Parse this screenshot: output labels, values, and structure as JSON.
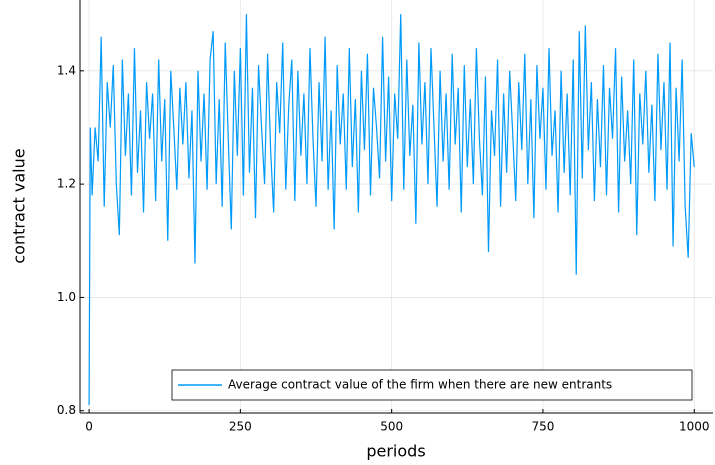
{
  "chart_data": {
    "type": "line",
    "xlabel": "periods",
    "ylabel": "contract value",
    "x": [
      0,
      2,
      5,
      10,
      15,
      20,
      25,
      30,
      35,
      40,
      45,
      50,
      55,
      60,
      65,
      70,
      75,
      80,
      85,
      90,
      95,
      100,
      105,
      110,
      115,
      120,
      125,
      130,
      135,
      140,
      145,
      150,
      155,
      160,
      165,
      170,
      175,
      180,
      185,
      190,
      195,
      200,
      205,
      210,
      215,
      220,
      225,
      230,
      235,
      240,
      245,
      250,
      255,
      260,
      265,
      270,
      275,
      280,
      285,
      290,
      295,
      300,
      305,
      310,
      315,
      320,
      325,
      330,
      335,
      340,
      345,
      350,
      355,
      360,
      365,
      370,
      375,
      380,
      385,
      390,
      395,
      400,
      405,
      410,
      415,
      420,
      425,
      430,
      435,
      440,
      445,
      450,
      455,
      460,
      465,
      470,
      475,
      480,
      485,
      490,
      495,
      500,
      505,
      510,
      515,
      520,
      525,
      530,
      535,
      540,
      545,
      550,
      555,
      560,
      565,
      570,
      575,
      580,
      585,
      590,
      595,
      600,
      605,
      610,
      615,
      620,
      625,
      630,
      635,
      640,
      645,
      650,
      655,
      660,
      665,
      670,
      675,
      680,
      685,
      690,
      695,
      700,
      705,
      710,
      715,
      720,
      725,
      730,
      735,
      740,
      745,
      750,
      755,
      760,
      765,
      770,
      775,
      780,
      785,
      790,
      795,
      800,
      805,
      810,
      815,
      820,
      825,
      830,
      835,
      840,
      845,
      850,
      855,
      860,
      865,
      870,
      875,
      880,
      885,
      890,
      895,
      900,
      905,
      910,
      915,
      920,
      925,
      930,
      935,
      940,
      945,
      950,
      955,
      960,
      965,
      970,
      975,
      980,
      985,
      990,
      995,
      1000
    ],
    "series": [
      {
        "name": "Average contract value of the firm when there are new entrants",
        "color": "#009af9",
        "values": [
          0.81,
          1.3,
          1.18,
          1.3,
          1.24,
          1.46,
          1.16,
          1.38,
          1.3,
          1.41,
          1.2,
          1.11,
          1.42,
          1.25,
          1.36,
          1.18,
          1.44,
          1.22,
          1.33,
          1.15,
          1.38,
          1.28,
          1.36,
          1.17,
          1.42,
          1.24,
          1.35,
          1.1,
          1.4,
          1.3,
          1.19,
          1.37,
          1.27,
          1.38,
          1.21,
          1.33,
          1.06,
          1.4,
          1.24,
          1.36,
          1.19,
          1.42,
          1.47,
          1.2,
          1.35,
          1.16,
          1.45,
          1.28,
          1.12,
          1.4,
          1.25,
          1.44,
          1.18,
          1.5,
          1.22,
          1.37,
          1.14,
          1.41,
          1.3,
          1.2,
          1.43,
          1.26,
          1.15,
          1.38,
          1.29,
          1.45,
          1.19,
          1.34,
          1.42,
          1.17,
          1.4,
          1.25,
          1.36,
          1.2,
          1.44,
          1.28,
          1.16,
          1.38,
          1.24,
          1.46,
          1.19,
          1.33,
          1.12,
          1.41,
          1.27,
          1.36,
          1.19,
          1.44,
          1.23,
          1.35,
          1.15,
          1.4,
          1.26,
          1.43,
          1.18,
          1.37,
          1.3,
          1.21,
          1.46,
          1.24,
          1.39,
          1.17,
          1.36,
          1.28,
          1.5,
          1.19,
          1.42,
          1.25,
          1.34,
          1.13,
          1.45,
          1.27,
          1.38,
          1.2,
          1.44,
          1.3,
          1.16,
          1.4,
          1.24,
          1.36,
          1.19,
          1.43,
          1.27,
          1.37,
          1.15,
          1.41,
          1.23,
          1.35,
          1.2,
          1.44,
          1.28,
          1.18,
          1.39,
          1.08,
          1.33,
          1.25,
          1.42,
          1.16,
          1.36,
          1.22,
          1.4,
          1.29,
          1.17,
          1.38,
          1.26,
          1.43,
          1.2,
          1.35,
          1.14,
          1.41,
          1.28,
          1.37,
          1.19,
          1.44,
          1.25,
          1.33,
          1.15,
          1.4,
          1.22,
          1.36,
          1.18,
          1.42,
          1.04,
          1.47,
          1.21,
          1.48,
          1.26,
          1.38,
          1.17,
          1.35,
          1.23,
          1.41,
          1.18,
          1.37,
          1.28,
          1.44,
          1.15,
          1.39,
          1.24,
          1.33,
          1.2,
          1.42,
          1.11,
          1.36,
          1.27,
          1.4,
          1.22,
          1.34,
          1.17,
          1.43,
          1.26,
          1.38,
          1.19,
          1.45,
          1.09,
          1.37,
          1.24,
          1.42,
          1.16,
          1.07,
          1.29,
          1.23
        ]
      }
    ],
    "xlim": [
      -15,
      1031
    ],
    "ylim": [
      0.796,
      1.525
    ],
    "xticks": [
      0,
      250,
      500,
      750,
      1000
    ],
    "yticks": [
      0.8,
      {
        "value": 1,
        "label": "1.0"
      },
      1.2,
      1.4
    ],
    "grid": true,
    "legend": "lower right"
  }
}
